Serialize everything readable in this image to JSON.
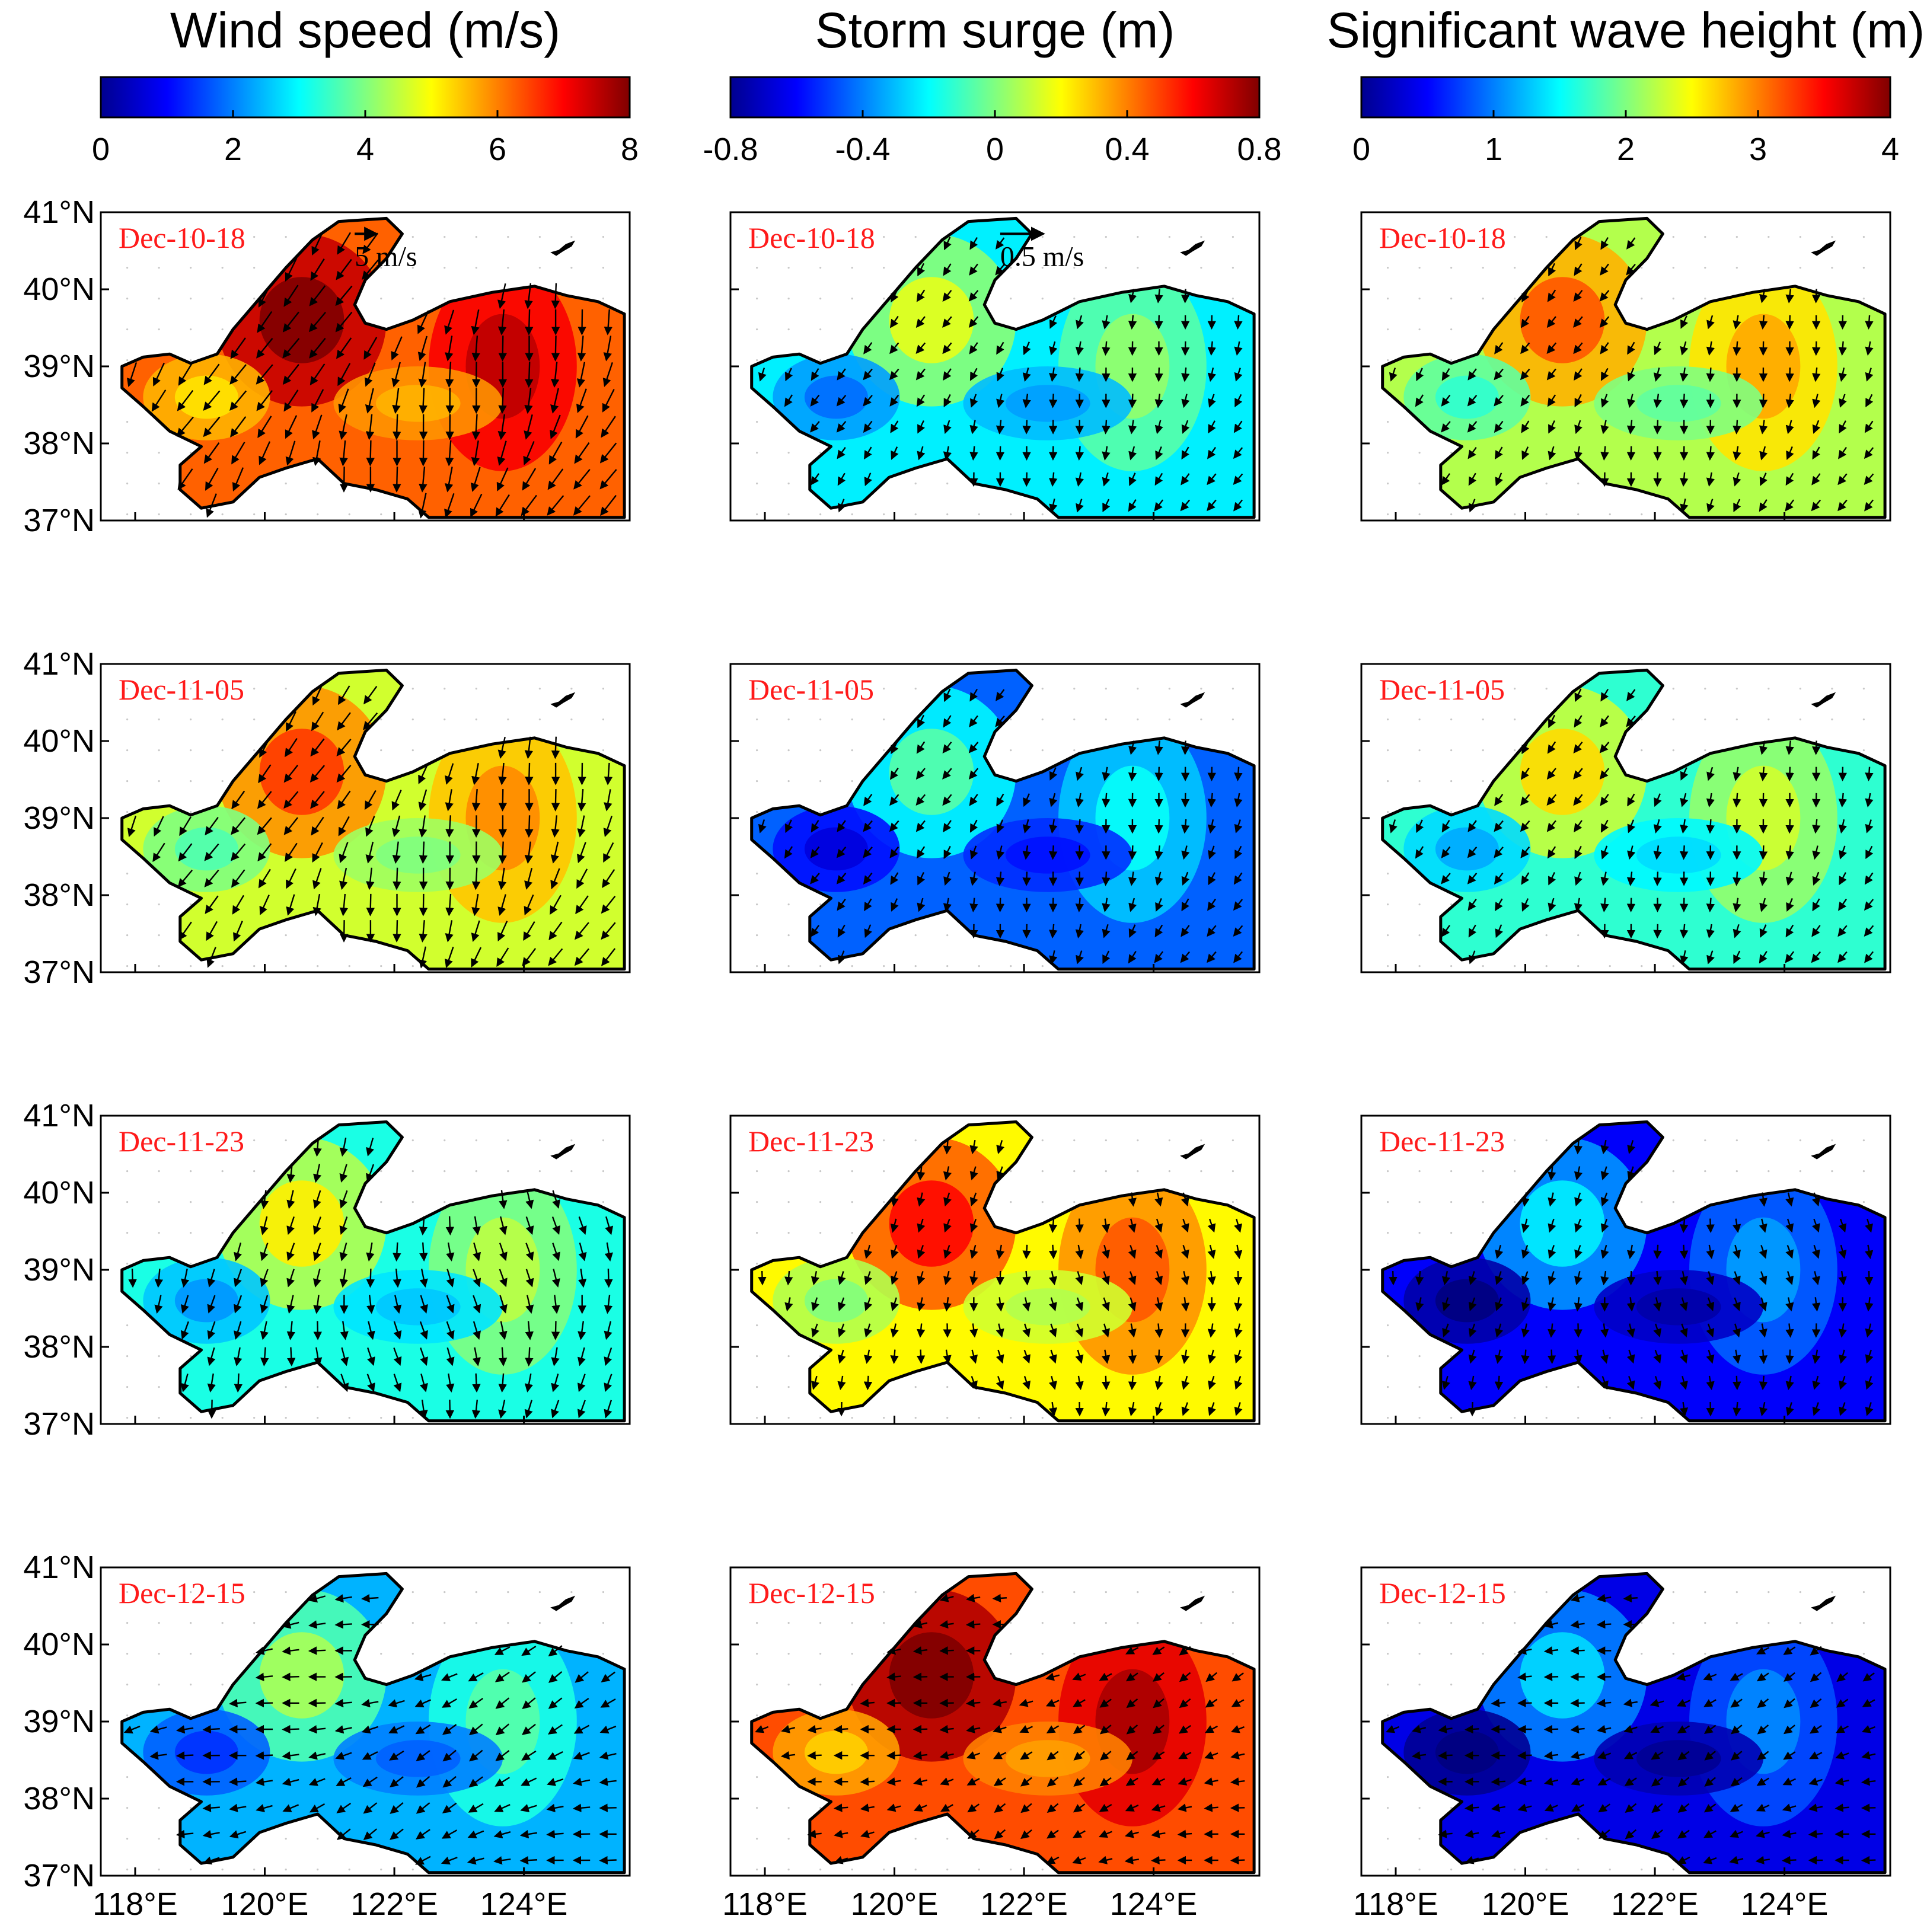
{
  "columns": [
    {
      "title": "Wind speed (m/s)",
      "colorbar_ticks": [
        "0",
        "2",
        "4",
        "6",
        "8"
      ],
      "range": [
        0,
        8
      ],
      "reference_arrow": "5 m/s"
    },
    {
      "title": "Storm surge (m)",
      "colorbar_ticks": [
        "-0.8",
        "-0.4",
        "0",
        "0.4",
        "0.8"
      ],
      "range": [
        -0.8,
        0.8
      ],
      "reference_arrow": "0.5 m/s"
    },
    {
      "title": "Significant wave height (m)",
      "colorbar_ticks": [
        "0",
        "1",
        "2",
        "3",
        "4"
      ],
      "range": [
        0,
        4
      ],
      "reference_arrow": ""
    }
  ],
  "rows": [
    {
      "time": "Dec-10-18",
      "wind_level": 0.78,
      "surge_level": 0.36,
      "wave_level": 0.55,
      "wind_dir": 250
    },
    {
      "time": "Dec-11-05",
      "wind_level": 0.58,
      "surge_level": 0.22,
      "wave_level": 0.42,
      "wind_dir": 250
    },
    {
      "time": "Dec-11-23",
      "wind_level": 0.4,
      "surge_level": 0.63,
      "wave_level": 0.12,
      "wind_dir": 270
    },
    {
      "time": "Dec-12-15",
      "wind_level": 0.3,
      "surge_level": 0.8,
      "wave_level": 0.1,
      "wind_dir": 200
    }
  ],
  "y_ticks": [
    "41°N",
    "40°N",
    "39°N",
    "38°N",
    "37°N"
  ],
  "x_ticks": [
    "118°E",
    "120°E",
    "122°E",
    "124°E"
  ],
  "colormap": "jet"
}
